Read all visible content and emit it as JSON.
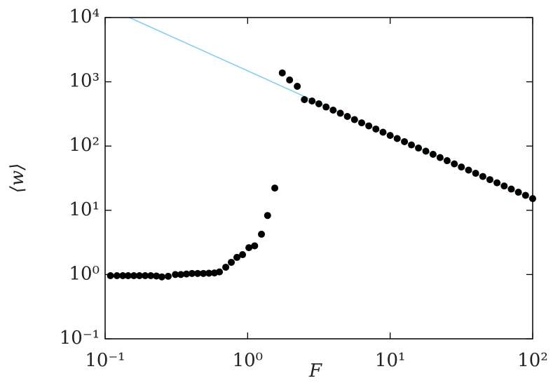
{
  "chart_data": {
    "type": "scatter",
    "x_label": "F",
    "y_label": "⟨w⟩",
    "log_x": true,
    "log_y": true,
    "xlim": [
      0.1,
      100
    ],
    "ylim": [
      0.1,
      10000
    ],
    "xticks": [
      {
        "value": 0.1,
        "label": "10⁻¹"
      },
      {
        "value": 1,
        "label": "10⁰"
      },
      {
        "value": 10,
        "label": "10¹"
      },
      {
        "value": 100,
        "label": "10²"
      }
    ],
    "yticks": [
      {
        "value": 0.1,
        "label": "10⁻¹"
      },
      {
        "value": 1,
        "label": "10⁰"
      },
      {
        "value": 10,
        "label": "10¹"
      },
      {
        "value": 100,
        "label": "10²"
      },
      {
        "value": 1000,
        "label": "10³"
      },
      {
        "value": 10000,
        "label": "10⁴"
      }
    ],
    "series": [
      {
        "kind": "line",
        "color": "#87ceeb",
        "x": [
          0.148,
          100
        ],
        "values": [
          10000,
          14.8
        ]
      },
      {
        "kind": "markers",
        "color": "#000000",
        "x": [
          0.109,
          0.121,
          0.133,
          0.145,
          0.159,
          0.174,
          0.191,
          0.209,
          0.229,
          0.25,
          0.277,
          0.311,
          0.34,
          0.372,
          0.407,
          0.446,
          0.489,
          0.535,
          0.585,
          0.634,
          0.702,
          0.768,
          0.841,
          0.921,
          1.02,
          1.12,
          1.25,
          1.38,
          1.55,
          1.75,
          1.97,
          2.23,
          2.5,
          2.83,
          3.16,
          3.55,
          3.98,
          4.47,
          5.01,
          5.62,
          6.31,
          7.08,
          7.94,
          8.91,
          10,
          11.2,
          12.6,
          14.1,
          15.8,
          17.8,
          20,
          22.4,
          25.1,
          28.2,
          31.6,
          35.5,
          39.8,
          44.7,
          50.1,
          56.2,
          63.1,
          70.8,
          79.4,
          89.1,
          100
        ],
        "values": [
          0.96,
          0.96,
          0.96,
          0.96,
          0.96,
          0.96,
          0.96,
          0.96,
          0.95,
          0.92,
          0.94,
          1.0,
          1.0,
          1.02,
          1.04,
          1.04,
          1.04,
          1.05,
          1.06,
          1.1,
          1.3,
          1.55,
          1.85,
          2.04,
          2.62,
          2.8,
          4.24,
          8.3,
          22.2,
          1374,
          1067,
          851,
          528,
          502,
          454,
          405,
          362,
          324,
          289,
          258,
          230,
          206,
          184,
          164,
          146,
          131,
          117,
          104,
          93.1,
          83.2,
          74.3,
          66.2,
          59.2,
          52.8,
          47.2,
          42.2,
          37.7,
          33.6,
          30.0,
          26.8,
          23.9,
          21.4,
          19.1,
          17.1,
          15.2
        ]
      }
    ]
  }
}
